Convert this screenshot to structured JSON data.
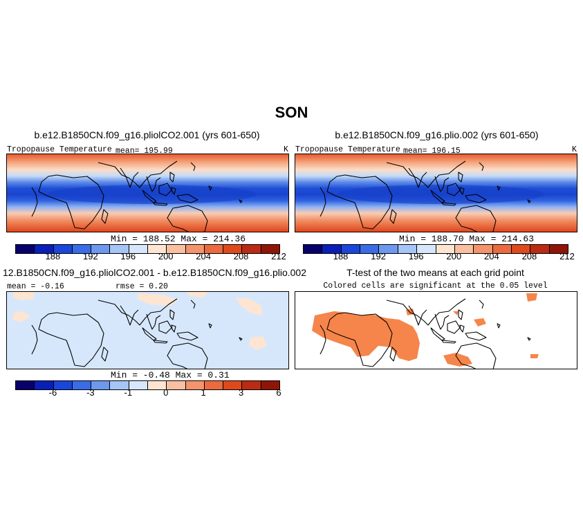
{
  "title": "SON",
  "colors": {
    "temperature_scale": [
      "#08006b",
      "#0a1fb8",
      "#1a46d9",
      "#3a6ce8",
      "#6d98ee",
      "#a6c4f5",
      "#d6e7fc",
      "#fde5d2",
      "#f8bfa1",
      "#f3946c",
      "#ec6a3f",
      "#de4a1e",
      "#b92b12",
      "#8f1607"
    ],
    "difference_scale": [
      "#08006b",
      "#0a1fb8",
      "#1a46d9",
      "#3a6ce8",
      "#6d98ee",
      "#a6c4f5",
      "#d6e7fc",
      "#fde5d2",
      "#f8bfa1",
      "#f3946c",
      "#ec6a3f",
      "#de4a1e",
      "#b92b12",
      "#8f1607"
    ],
    "significant": "#f5854a",
    "diff_background": "#d6e7fc",
    "diff_positive": "#fde5d2"
  },
  "panels": {
    "top_left": {
      "title": "b.e12.B1850CN.f09_g16.pliolCO2.001 (yrs 601-650)",
      "variable": "Tropopause Temperature",
      "mean": "mean= 195.99",
      "units": "K",
      "minmax": "Min = 188.52 Max = 214.36",
      "ticks": [
        "188",
        "192",
        "196",
        "200",
        "204",
        "208",
        "212"
      ]
    },
    "top_right": {
      "title": "b.e12.B1850CN.f09_g16.plio.002 (yrs 601-650)",
      "variable": "Tropopause Temperature",
      "mean": "mean= 196.15",
      "units": "K",
      "minmax": "Min = 188.70 Max = 214.63",
      "ticks": [
        "188",
        "192",
        "196",
        "200",
        "204",
        "208",
        "212"
      ]
    },
    "bottom_left": {
      "title": "12.B1850CN.f09_g16.pliolCO2.001 - b.e12.B1850CN.f09_g16.plio.002",
      "mean": "mean = -0.16",
      "rmse": "rmse = 0.20",
      "minmax": "Min = -0.48 Max = 0.31",
      "ticks": [
        "-6",
        "-3",
        "-1",
        "0",
        "1",
        "3",
        "6"
      ]
    },
    "bottom_right": {
      "title": "T-test of the two means at each grid point",
      "subtitle": "Colored cells are significant at the 0.05 level"
    }
  }
}
